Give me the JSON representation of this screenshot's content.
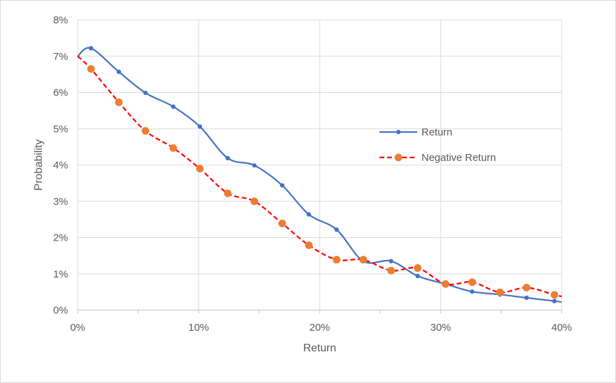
{
  "chart_data": {
    "type": "line",
    "title": "",
    "xlabel": "Return",
    "ylabel": "Probability",
    "xlim": [
      0,
      0.4
    ],
    "ylim": [
      0,
      0.08
    ],
    "x_ticks": [
      0,
      0.1,
      0.2,
      0.3,
      0.4
    ],
    "x_tick_labels": [
      "0%",
      "10%",
      "20%",
      "30%",
      "40%"
    ],
    "y_ticks": [
      0,
      0.01,
      0.02,
      0.03,
      0.04,
      0.05,
      0.06,
      0.07,
      0.08
    ],
    "y_tick_labels": [
      "0%",
      "1%",
      "2%",
      "3%",
      "4%",
      "5%",
      "6%",
      "7%",
      "8%"
    ],
    "grid": "vertical and horizontal",
    "legend_position": "right",
    "series": [
      {
        "name": "Return",
        "color": "#4472c4",
        "line_style": "solid",
        "smooth": true,
        "x": [
          0,
          0.011,
          0.034,
          0.056,
          0.079,
          0.101,
          0.124,
          0.146,
          0.169,
          0.191,
          0.214,
          0.236,
          0.259,
          0.281,
          0.304,
          0.326,
          0.349,
          0.371,
          0.394,
          0.4
        ],
        "y": [
          0.07,
          0.0722,
          0.0657,
          0.0599,
          0.0561,
          0.0506,
          0.0419,
          0.0399,
          0.0344,
          0.0264,
          0.0222,
          0.0135,
          0.0135,
          0.0094,
          0.0072,
          0.0051,
          0.0043,
          0.0034,
          0.0025,
          0.0022
        ]
      },
      {
        "name": "Negative Return",
        "color": "#ff0000",
        "marker_color": "#ed7d31",
        "line_style": "dashed",
        "smooth": true,
        "x": [
          0,
          0.011,
          0.034,
          0.056,
          0.079,
          0.101,
          0.124,
          0.146,
          0.169,
          0.191,
          0.214,
          0.236,
          0.259,
          0.281,
          0.304,
          0.326,
          0.349,
          0.371,
          0.394,
          0.4
        ],
        "y": [
          0.07,
          0.0665,
          0.0573,
          0.0494,
          0.0447,
          0.039,
          0.0322,
          0.03,
          0.0239,
          0.0179,
          0.0139,
          0.0139,
          0.0109,
          0.0116,
          0.0072,
          0.0077,
          0.0049,
          0.0062,
          0.0042,
          0.0038
        ]
      }
    ]
  }
}
